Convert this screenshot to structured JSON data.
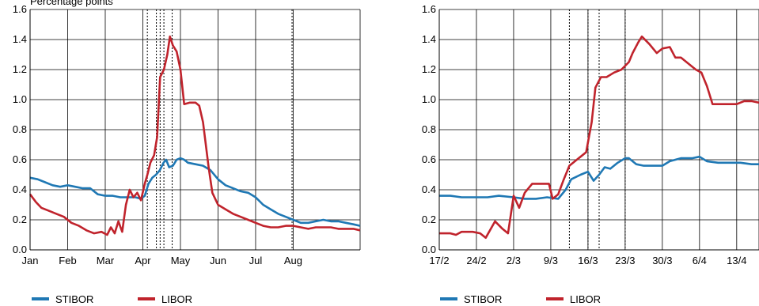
{
  "chart_data": [
    {
      "type": "line",
      "title": "",
      "unit_label": "Percentage points",
      "ylim": [
        0,
        1.6
      ],
      "yticks": [
        "0.0",
        "0.2",
        "0.4",
        "0.6",
        "0.8",
        "1.0",
        "1.2",
        "1.4",
        "1.6"
      ],
      "x_tick_labels": [
        "Jan",
        "Feb",
        "Mar",
        "Apr",
        "May",
        "Jun",
        "Jul",
        "Aug"
      ],
      "grid": true,
      "legend_position": "bottom",
      "event_lines_month": [
        3.12,
        3.36,
        3.46,
        3.56,
        3.78,
        6.97
      ],
      "series": [
        {
          "name": "STIBOR",
          "color": "#1f78b4",
          "points": [
            [
              0.0,
              0.48
            ],
            [
              0.2,
              0.47
            ],
            [
              0.4,
              0.45
            ],
            [
              0.6,
              0.43
            ],
            [
              0.8,
              0.42
            ],
            [
              1.0,
              0.43
            ],
            [
              1.2,
              0.42
            ],
            [
              1.4,
              0.41
            ],
            [
              1.6,
              0.41
            ],
            [
              1.8,
              0.37
            ],
            [
              2.0,
              0.36
            ],
            [
              2.2,
              0.36
            ],
            [
              2.4,
              0.35
            ],
            [
              2.6,
              0.35
            ],
            [
              2.8,
              0.35
            ],
            [
              2.95,
              0.34
            ],
            [
              3.05,
              0.36
            ],
            [
              3.15,
              0.44
            ],
            [
              3.25,
              0.48
            ],
            [
              3.35,
              0.5
            ],
            [
              3.45,
              0.53
            ],
            [
              3.55,
              0.58
            ],
            [
              3.62,
              0.6
            ],
            [
              3.7,
              0.55
            ],
            [
              3.8,
              0.56
            ],
            [
              3.9,
              0.6
            ],
            [
              4.0,
              0.61
            ],
            [
              4.1,
              0.6
            ],
            [
              4.2,
              0.58
            ],
            [
              4.4,
              0.57
            ],
            [
              4.6,
              0.56
            ],
            [
              4.8,
              0.53
            ],
            [
              5.0,
              0.47
            ],
            [
              5.2,
              0.43
            ],
            [
              5.4,
              0.41
            ],
            [
              5.6,
              0.39
            ],
            [
              5.8,
              0.38
            ],
            [
              6.0,
              0.35
            ],
            [
              6.2,
              0.3
            ],
            [
              6.4,
              0.27
            ],
            [
              6.6,
              0.24
            ],
            [
              6.8,
              0.22
            ],
            [
              7.0,
              0.2
            ],
            [
              7.2,
              0.18
            ],
            [
              7.4,
              0.18
            ],
            [
              7.6,
              0.19
            ],
            [
              7.8,
              0.2
            ],
            [
              8.0,
              0.19
            ],
            [
              8.2,
              0.19
            ],
            [
              8.4,
              0.18
            ],
            [
              8.6,
              0.17
            ],
            [
              8.78,
              0.16
            ]
          ]
        },
        {
          "name": "LIBOR",
          "color": "#c0232c",
          "points": [
            [
              0.0,
              0.37
            ],
            [
              0.15,
              0.32
            ],
            [
              0.3,
              0.28
            ],
            [
              0.5,
              0.26
            ],
            [
              0.7,
              0.24
            ],
            [
              0.9,
              0.22
            ],
            [
              1.1,
              0.18
            ],
            [
              1.3,
              0.16
            ],
            [
              1.5,
              0.13
            ],
            [
              1.7,
              0.11
            ],
            [
              1.9,
              0.12
            ],
            [
              2.05,
              0.1
            ],
            [
              2.15,
              0.15
            ],
            [
              2.25,
              0.11
            ],
            [
              2.35,
              0.19
            ],
            [
              2.45,
              0.12
            ],
            [
              2.55,
              0.3
            ],
            [
              2.65,
              0.4
            ],
            [
              2.75,
              0.35
            ],
            [
              2.85,
              0.38
            ],
            [
              2.95,
              0.33
            ],
            [
              3.05,
              0.44
            ],
            [
              3.12,
              0.5
            ],
            [
              3.2,
              0.58
            ],
            [
              3.3,
              0.63
            ],
            [
              3.38,
              0.75
            ],
            [
              3.46,
              1.15
            ],
            [
              3.56,
              1.2
            ],
            [
              3.65,
              1.3
            ],
            [
              3.72,
              1.42
            ],
            [
              3.8,
              1.36
            ],
            [
              3.9,
              1.32
            ],
            [
              4.0,
              1.2
            ],
            [
              4.1,
              0.97
            ],
            [
              4.25,
              0.98
            ],
            [
              4.4,
              0.98
            ],
            [
              4.5,
              0.96
            ],
            [
              4.6,
              0.85
            ],
            [
              4.75,
              0.55
            ],
            [
              4.85,
              0.38
            ],
            [
              5.0,
              0.3
            ],
            [
              5.2,
              0.27
            ],
            [
              5.4,
              0.24
            ],
            [
              5.6,
              0.22
            ],
            [
              5.8,
              0.2
            ],
            [
              6.0,
              0.18
            ],
            [
              6.2,
              0.16
            ],
            [
              6.4,
              0.15
            ],
            [
              6.6,
              0.15
            ],
            [
              6.8,
              0.16
            ],
            [
              7.0,
              0.16
            ],
            [
              7.2,
              0.15
            ],
            [
              7.4,
              0.14
            ],
            [
              7.6,
              0.15
            ],
            [
              7.8,
              0.15
            ],
            [
              8.0,
              0.15
            ],
            [
              8.2,
              0.14
            ],
            [
              8.4,
              0.14
            ],
            [
              8.6,
              0.14
            ],
            [
              8.78,
              0.13
            ]
          ]
        }
      ]
    },
    {
      "type": "line",
      "title": "",
      "ylim": [
        0,
        1.6
      ],
      "yticks": [
        "0.0",
        "0.2",
        "0.4",
        "0.6",
        "0.8",
        "1.0",
        "1.2",
        "1.4",
        "1.6"
      ],
      "x_tick_labels": [
        "17/2",
        "24/2",
        "2/3",
        "9/3",
        "16/3",
        "23/3",
        "30/3",
        "6/4",
        "13/4"
      ],
      "grid": true,
      "legend_position": "bottom",
      "event_lines_week": [
        3.5,
        4.0,
        4.3,
        5.0
      ],
      "series": [
        {
          "name": "STIBOR",
          "color": "#1f78b4",
          "points": [
            [
              0.0,
              0.36
            ],
            [
              0.3,
              0.36
            ],
            [
              0.6,
              0.35
            ],
            [
              1.0,
              0.35
            ],
            [
              1.3,
              0.35
            ],
            [
              1.6,
              0.36
            ],
            [
              2.0,
              0.35
            ],
            [
              2.3,
              0.34
            ],
            [
              2.6,
              0.34
            ],
            [
              2.9,
              0.35
            ],
            [
              3.2,
              0.34
            ],
            [
              3.4,
              0.4
            ],
            [
              3.55,
              0.47
            ],
            [
              3.8,
              0.5
            ],
            [
              4.0,
              0.52
            ],
            [
              4.15,
              0.46
            ],
            [
              4.3,
              0.5
            ],
            [
              4.45,
              0.55
            ],
            [
              4.6,
              0.54
            ],
            [
              4.8,
              0.58
            ],
            [
              5.0,
              0.61
            ],
            [
              5.1,
              0.61
            ],
            [
              5.3,
              0.57
            ],
            [
              5.5,
              0.56
            ],
            [
              5.8,
              0.56
            ],
            [
              6.0,
              0.56
            ],
            [
              6.2,
              0.59
            ],
            [
              6.5,
              0.61
            ],
            [
              6.8,
              0.61
            ],
            [
              7.0,
              0.62
            ],
            [
              7.2,
              0.59
            ],
            [
              7.5,
              0.58
            ],
            [
              7.8,
              0.58
            ],
            [
              8.1,
              0.58
            ],
            [
              8.4,
              0.57
            ],
            [
              8.6,
              0.57
            ]
          ]
        },
        {
          "name": "LIBOR",
          "color": "#c0232c",
          "points": [
            [
              0.0,
              0.11
            ],
            [
              0.3,
              0.11
            ],
            [
              0.45,
              0.1
            ],
            [
              0.6,
              0.12
            ],
            [
              0.9,
              0.12
            ],
            [
              1.1,
              0.11
            ],
            [
              1.25,
              0.08
            ],
            [
              1.5,
              0.19
            ],
            [
              1.7,
              0.14
            ],
            [
              1.85,
              0.11
            ],
            [
              2.0,
              0.36
            ],
            [
              2.15,
              0.28
            ],
            [
              2.3,
              0.38
            ],
            [
              2.5,
              0.44
            ],
            [
              2.8,
              0.44
            ],
            [
              2.95,
              0.44
            ],
            [
              3.05,
              0.34
            ],
            [
              3.2,
              0.37
            ],
            [
              3.35,
              0.47
            ],
            [
              3.5,
              0.56
            ],
            [
              3.7,
              0.6
            ],
            [
              3.85,
              0.63
            ],
            [
              3.95,
              0.65
            ],
            [
              4.1,
              0.85
            ],
            [
              4.2,
              1.08
            ],
            [
              4.35,
              1.15
            ],
            [
              4.5,
              1.15
            ],
            [
              4.7,
              1.18
            ],
            [
              4.9,
              1.2
            ],
            [
              5.1,
              1.25
            ],
            [
              5.2,
              1.31
            ],
            [
              5.35,
              1.38
            ],
            [
              5.45,
              1.42
            ],
            [
              5.65,
              1.37
            ],
            [
              5.85,
              1.31
            ],
            [
              6.0,
              1.34
            ],
            [
              6.2,
              1.35
            ],
            [
              6.35,
              1.28
            ],
            [
              6.5,
              1.28
            ],
            [
              6.7,
              1.24
            ],
            [
              6.9,
              1.2
            ],
            [
              7.05,
              1.18
            ],
            [
              7.2,
              1.09
            ],
            [
              7.35,
              0.97
            ],
            [
              7.6,
              0.97
            ],
            [
              7.9,
              0.97
            ],
            [
              8.0,
              0.97
            ],
            [
              8.2,
              0.99
            ],
            [
              8.4,
              0.99
            ],
            [
              8.6,
              0.98
            ]
          ]
        }
      ]
    }
  ],
  "legends": [
    {
      "stibor_label": "STIBOR",
      "libor_label": "LIBOR"
    },
    {
      "stibor_label": "STIBOR",
      "libor_label": "LIBOR"
    }
  ]
}
